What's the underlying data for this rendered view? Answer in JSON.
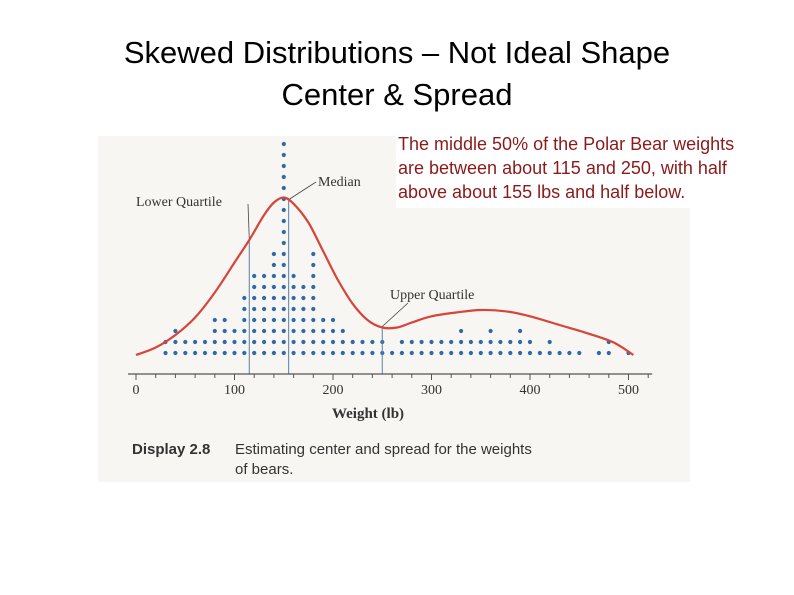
{
  "slide": {
    "title_line1": "Skewed Distributions – Not Ideal Shape",
    "title_line2": "Center & Spread",
    "callout": "The middle 50% of the Polar Bear weights are between about 115 and 250, with half above about 155 lbs and half below."
  },
  "chart_data": {
    "type": "scatter",
    "subtype": "dot plot with smooth density curve",
    "xlabel": "Weight (lb)",
    "xlim": [
      0,
      520
    ],
    "x_ticks": [
      0,
      100,
      200,
      300,
      400,
      500
    ],
    "caption_label": "Display 2.8",
    "caption_text_line1": "Estimating center and spread for the weights",
    "caption_text_line2": "of bears.",
    "dot_columns": [
      {
        "x": 30,
        "count": 2
      },
      {
        "x": 40,
        "count": 3
      },
      {
        "x": 50,
        "count": 2
      },
      {
        "x": 60,
        "count": 2
      },
      {
        "x": 70,
        "count": 2
      },
      {
        "x": 80,
        "count": 4
      },
      {
        "x": 90,
        "count": 4
      },
      {
        "x": 100,
        "count": 3
      },
      {
        "x": 110,
        "count": 6
      },
      {
        "x": 120,
        "count": 8
      },
      {
        "x": 130,
        "count": 8
      },
      {
        "x": 140,
        "count": 10
      },
      {
        "x": 150,
        "count": 20
      },
      {
        "x": 160,
        "count": 8
      },
      {
        "x": 170,
        "count": 7
      },
      {
        "x": 180,
        "count": 10
      },
      {
        "x": 190,
        "count": 4
      },
      {
        "x": 200,
        "count": 4
      },
      {
        "x": 210,
        "count": 3
      },
      {
        "x": 220,
        "count": 2
      },
      {
        "x": 230,
        "count": 2
      },
      {
        "x": 240,
        "count": 2
      },
      {
        "x": 250,
        "count": 2
      },
      {
        "x": 260,
        "count": 1
      },
      {
        "x": 270,
        "count": 2
      },
      {
        "x": 280,
        "count": 2
      },
      {
        "x": 290,
        "count": 2
      },
      {
        "x": 300,
        "count": 2
      },
      {
        "x": 310,
        "count": 2
      },
      {
        "x": 320,
        "count": 2
      },
      {
        "x": 330,
        "count": 3
      },
      {
        "x": 340,
        "count": 2
      },
      {
        "x": 350,
        "count": 2
      },
      {
        "x": 360,
        "count": 3
      },
      {
        "x": 370,
        "count": 2
      },
      {
        "x": 380,
        "count": 2
      },
      {
        "x": 390,
        "count": 3
      },
      {
        "x": 400,
        "count": 2
      },
      {
        "x": 410,
        "count": 1
      },
      {
        "x": 420,
        "count": 2
      },
      {
        "x": 430,
        "count": 1
      },
      {
        "x": 440,
        "count": 1
      },
      {
        "x": 450,
        "count": 1
      },
      {
        "x": 470,
        "count": 1
      },
      {
        "x": 480,
        "count": 2
      },
      {
        "x": 500,
        "count": 1
      }
    ],
    "curve": [
      [
        0,
        0
      ],
      [
        20,
        0.6
      ],
      [
        40,
        1.6
      ],
      [
        60,
        3
      ],
      [
        80,
        5
      ],
      [
        100,
        7.4
      ],
      [
        115,
        9.2
      ],
      [
        130,
        11.2
      ],
      [
        140,
        12.2
      ],
      [
        150,
        12.6
      ],
      [
        160,
        12.1
      ],
      [
        175,
        10.6
      ],
      [
        190,
        8.3
      ],
      [
        205,
        6
      ],
      [
        220,
        4.1
      ],
      [
        235,
        2.8
      ],
      [
        250,
        2.2
      ],
      [
        265,
        2.2
      ],
      [
        280,
        2.6
      ],
      [
        300,
        3.1
      ],
      [
        325,
        3.4
      ],
      [
        350,
        3.6
      ],
      [
        375,
        3.5
      ],
      [
        400,
        3.1
      ],
      [
        430,
        2.4
      ],
      [
        460,
        1.7
      ],
      [
        485,
        1
      ],
      [
        505,
        0
      ]
    ],
    "markers": [
      {
        "label": "Lower Quartile",
        "x": 115
      },
      {
        "label": "Median",
        "x": 155
      },
      {
        "label": "Upper Quartile",
        "x": 250
      }
    ],
    "colors": {
      "dots": "#2e6aa8",
      "curve": "#d6453b",
      "axis": "#555555"
    }
  }
}
